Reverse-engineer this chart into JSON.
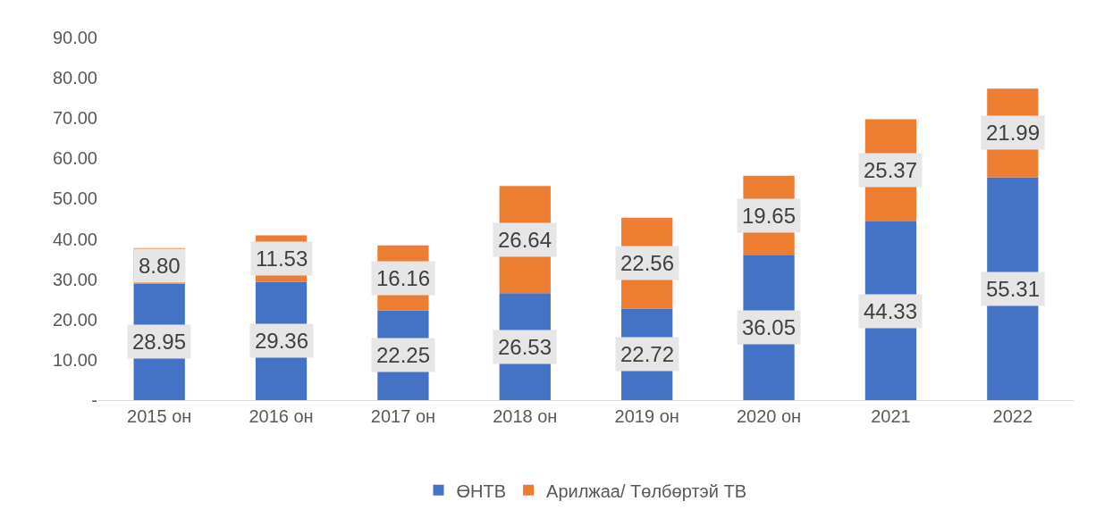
{
  "chart_data": {
    "type": "bar",
    "stacked": true,
    "categories": [
      "2015 он",
      "2016 он",
      "2017 он",
      "2018 он",
      "2019 он",
      "2020 он",
      "2021",
      "2022"
    ],
    "series": [
      {
        "name": "ӨНТВ",
        "color": "#4472c4",
        "values": [
          28.95,
          29.36,
          22.25,
          26.53,
          22.72,
          36.05,
          44.33,
          55.31
        ],
        "value_labels": [
          "28.95",
          "29.36",
          "22.25",
          "26.53",
          "22.72",
          "36.05",
          "44.33",
          "55.31"
        ]
      },
      {
        "name": "Арилжаа/ Төлбөртэй ТВ",
        "color": "#ed7d31",
        "values": [
          8.8,
          11.53,
          16.16,
          26.64,
          22.56,
          19.65,
          25.37,
          21.99
        ],
        "value_labels": [
          "8.80",
          "11.53",
          "16.16",
          "26.64",
          "22.56",
          "19.65",
          "25.37",
          "21.99"
        ]
      }
    ],
    "ylim": [
      0,
      90
    ],
    "yticks": [
      {
        "value": 0,
        "label": "-"
      },
      {
        "value": 10,
        "label": "10.00"
      },
      {
        "value": 20,
        "label": "20.00"
      },
      {
        "value": 30,
        "label": "30.00"
      },
      {
        "value": 40,
        "label": "40.00"
      },
      {
        "value": 50,
        "label": "50.00"
      },
      {
        "value": 60,
        "label": "60.00"
      },
      {
        "value": 70,
        "label": "70.00"
      },
      {
        "value": 80,
        "label": "80.00"
      },
      {
        "value": 90,
        "label": "90.00"
      }
    ],
    "grid": false,
    "legend": "bottom"
  }
}
